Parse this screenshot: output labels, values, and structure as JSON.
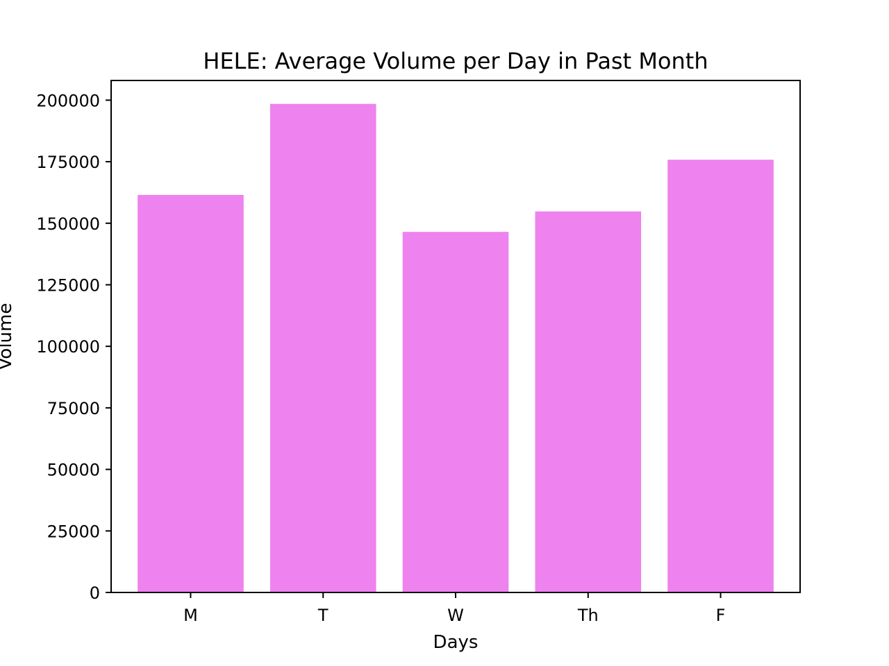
{
  "chart_data": {
    "type": "bar",
    "title": "HELE: Average Volume per Day in Past Month",
    "xlabel": "Days",
    "ylabel": "Volume",
    "categories": [
      "M",
      "T",
      "W",
      "Th",
      "F"
    ],
    "values": [
      161500,
      198500,
      146500,
      154800,
      175800
    ],
    "ylim": [
      0,
      208000
    ],
    "yticks": [
      0,
      25000,
      50000,
      75000,
      100000,
      125000,
      150000,
      175000,
      200000
    ],
    "bar_color": "#ee82ee",
    "grid": false,
    "legend": "none"
  }
}
